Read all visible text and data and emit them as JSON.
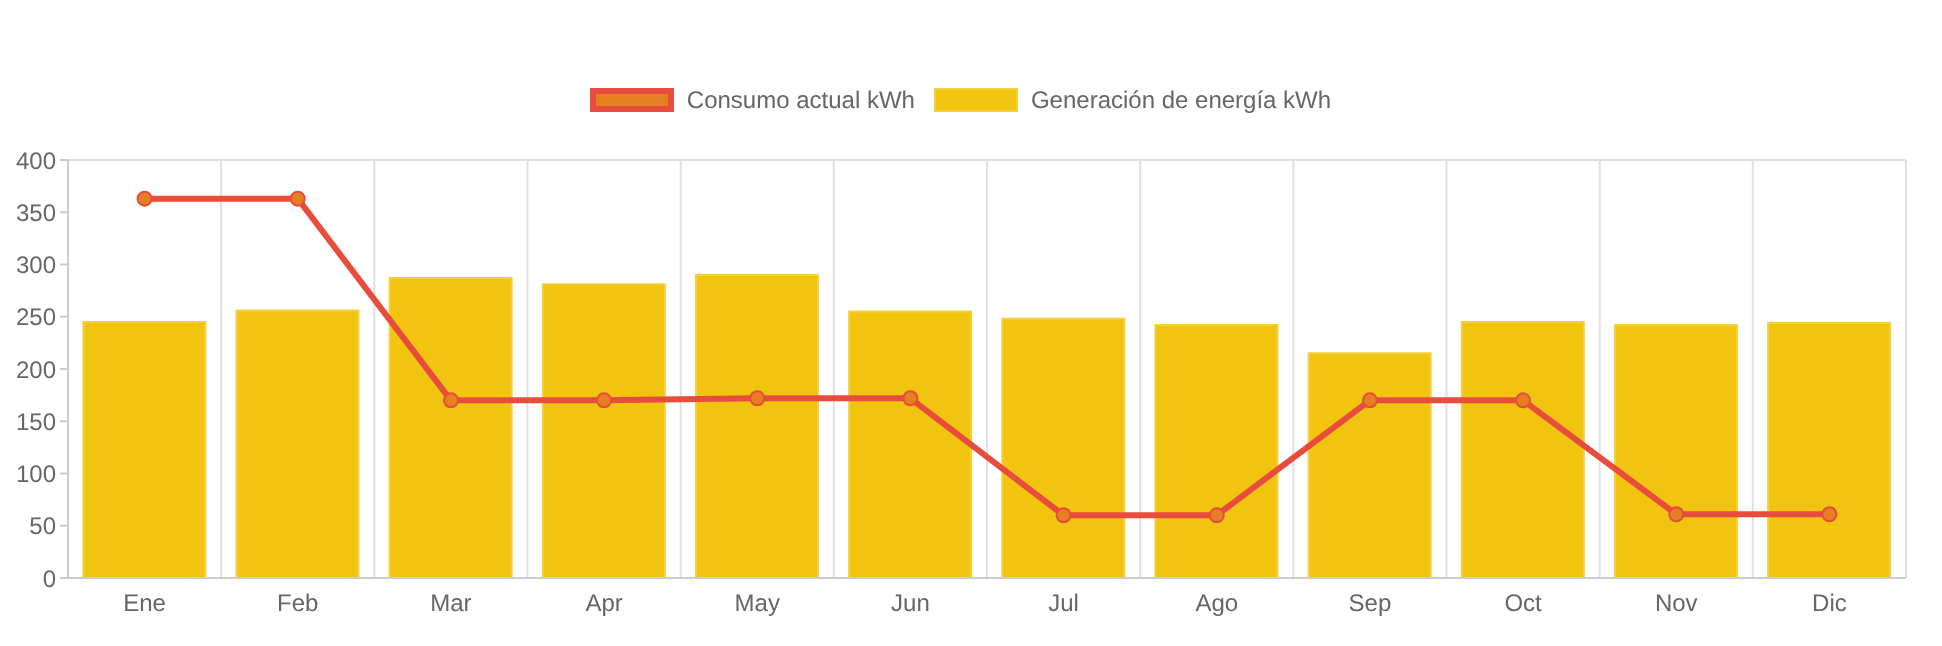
{
  "chart_data": {
    "type": "bar",
    "categories": [
      "Ene",
      "Feb",
      "Mar",
      "Apr",
      "May",
      "Jun",
      "Jul",
      "Ago",
      "Sep",
      "Oct",
      "Nov",
      "Dic"
    ],
    "series": [
      {
        "name": "Consumo actual kWh",
        "type": "line",
        "color": "#e74c3c",
        "values": [
          363,
          363,
          170,
          170,
          172,
          172,
          60,
          60,
          170,
          170,
          61,
          61
        ]
      },
      {
        "name": "Generación de energía kWh",
        "color": "#f1c40f",
        "values": [
          245,
          256,
          287,
          281,
          290,
          255,
          248,
          242,
          215,
          245,
          242,
          244
        ]
      }
    ],
    "ylim": [
      0,
      400
    ],
    "yticks": [
      0,
      50,
      100,
      150,
      200,
      250,
      300,
      350,
      400
    ],
    "grid": true,
    "legend": "top",
    "marker": "circle",
    "line_style": "solid"
  }
}
